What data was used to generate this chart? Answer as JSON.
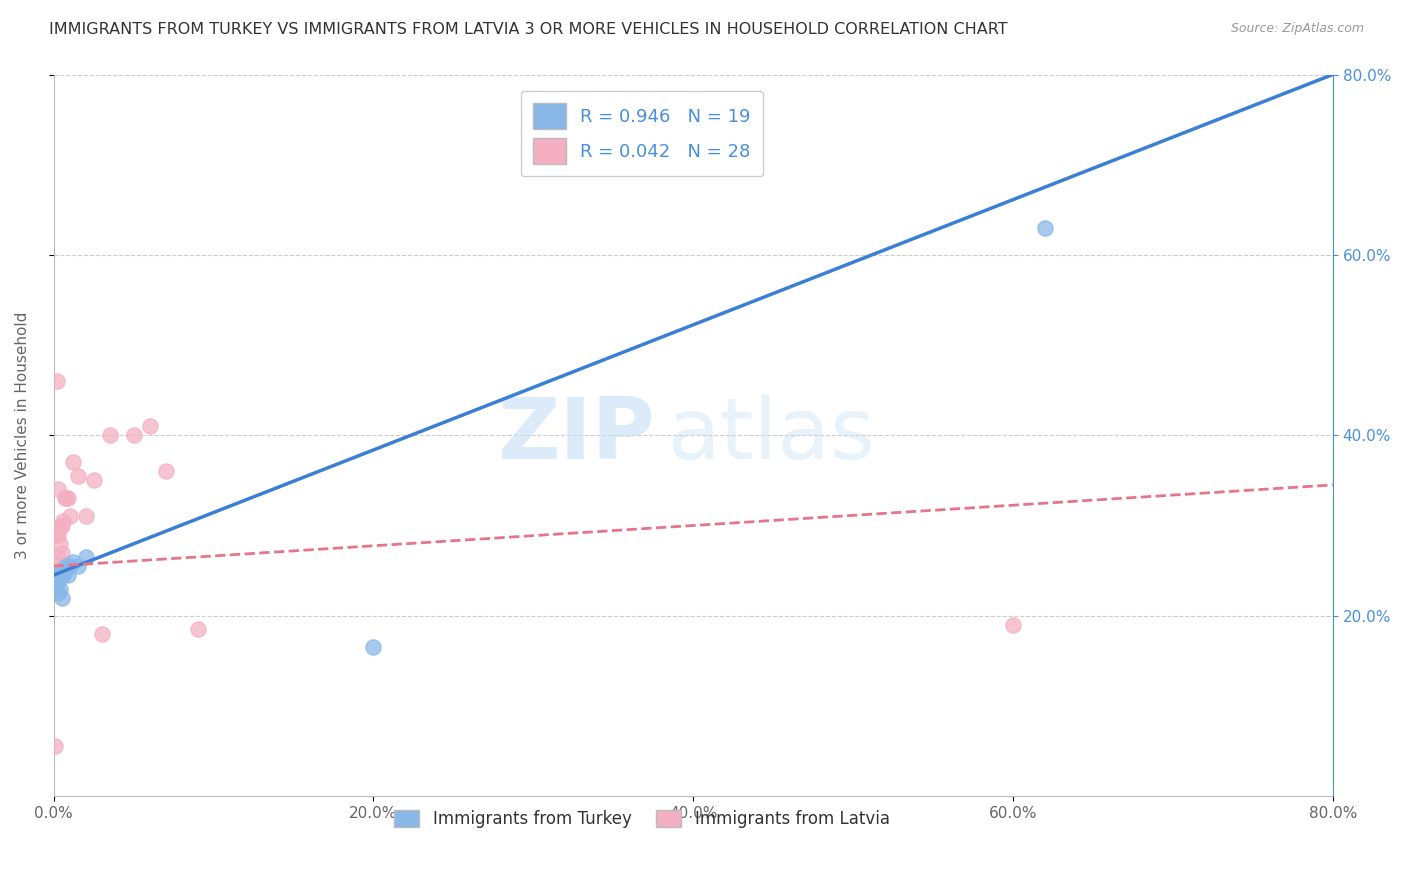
{
  "title": "IMMIGRANTS FROM TURKEY VS IMMIGRANTS FROM LATVIA 3 OR MORE VEHICLES IN HOUSEHOLD CORRELATION CHART",
  "source": "Source: ZipAtlas.com",
  "ylabel": "3 or more Vehicles in Household",
  "xmin": 0.0,
  "xmax": 0.8,
  "ymin": 0.0,
  "ymax": 0.8,
  "x_tick_labels": [
    "0.0%",
    "20.0%",
    "40.0%",
    "60.0%",
    "80.0%"
  ],
  "x_tick_vals": [
    0.0,
    0.2,
    0.4,
    0.6,
    0.8
  ],
  "y_tick_vals": [
    0.2,
    0.4,
    0.6,
    0.8
  ],
  "y_tick_labels": [
    "20.0%",
    "40.0%",
    "60.0%",
    "80.0%"
  ],
  "turkey_color": "#89b8e8",
  "latvia_color": "#f4afc2",
  "turkey_line_color": "#3a7fd5",
  "latvia_line_color": "#e8748a",
  "R_turkey": 0.946,
  "N_turkey": 19,
  "R_latvia": 0.042,
  "N_latvia": 28,
  "legend_label_turkey": "Immigrants from Turkey",
  "legend_label_latvia": "Immigrants from Latvia",
  "watermark_zip": "ZIP",
  "watermark_atlas": "atlas",
  "turkey_line_x0": 0.0,
  "turkey_line_y0": 0.245,
  "turkey_line_x1": 0.8,
  "turkey_line_y1": 0.8,
  "latvia_line_x0": 0.0,
  "latvia_line_y0": 0.255,
  "latvia_line_x1": 0.8,
  "latvia_line_y1": 0.345,
  "turkey_scatter_x": [
    0.001,
    0.002,
    0.002,
    0.003,
    0.003,
    0.004,
    0.004,
    0.005,
    0.005,
    0.006,
    0.007,
    0.008,
    0.009,
    0.01,
    0.012,
    0.015,
    0.02,
    0.2,
    0.62
  ],
  "turkey_scatter_y": [
    0.23,
    0.235,
    0.24,
    0.225,
    0.245,
    0.23,
    0.25,
    0.22,
    0.245,
    0.245,
    0.25,
    0.255,
    0.245,
    0.255,
    0.26,
    0.255,
    0.265,
    0.165,
    0.63
  ],
  "latvia_scatter_x": [
    0.001,
    0.001,
    0.002,
    0.002,
    0.003,
    0.003,
    0.004,
    0.004,
    0.005,
    0.005,
    0.006,
    0.007,
    0.008,
    0.009,
    0.01,
    0.012,
    0.015,
    0.02,
    0.025,
    0.03,
    0.035,
    0.05,
    0.06,
    0.07,
    0.09,
    0.002,
    0.6,
    0.003
  ],
  "latvia_scatter_y": [
    0.055,
    0.255,
    0.245,
    0.29,
    0.265,
    0.29,
    0.28,
    0.3,
    0.27,
    0.3,
    0.305,
    0.33,
    0.33,
    0.33,
    0.31,
    0.37,
    0.355,
    0.31,
    0.35,
    0.18,
    0.4,
    0.4,
    0.41,
    0.36,
    0.185,
    0.46,
    0.19,
    0.34
  ]
}
